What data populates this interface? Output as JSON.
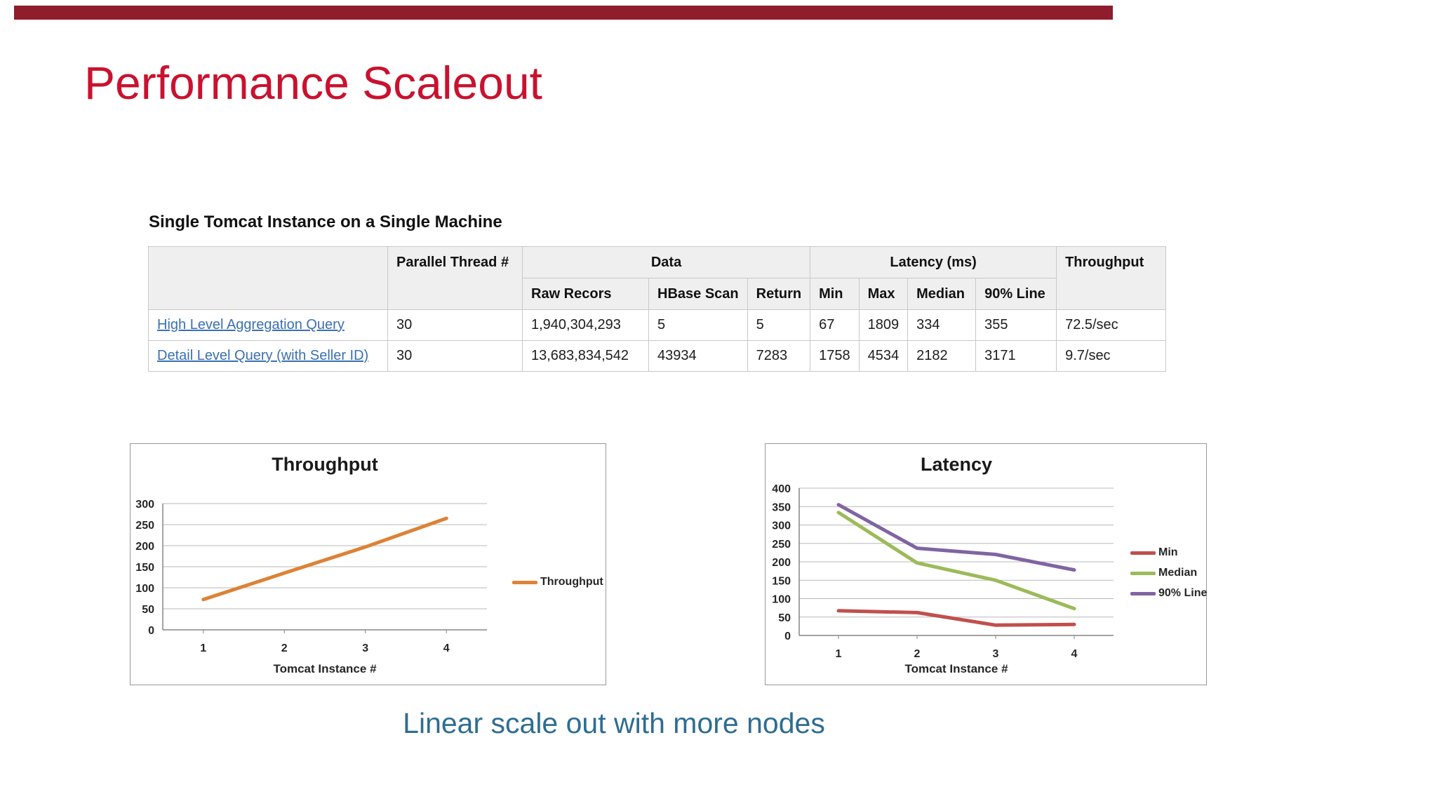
{
  "page": {
    "title": "Performance Scaleout",
    "title_color": "#c9122f",
    "top_bar_color": "#8f1d2c",
    "caption": "Linear scale out with more nodes",
    "caption_color": "#2e6d92"
  },
  "table": {
    "title": "Single Tomcat Instance on a Single Machine",
    "link_color": "#3a70b2",
    "group_headers": {
      "parallel": "Parallel Thread #",
      "data": "Data",
      "latency": "Latency (ms)",
      "throughput": "Throughput"
    },
    "sub_headers": {
      "raw": "Raw Recors",
      "hbase": "HBase Scan",
      "return": "Return",
      "min": "Min",
      "max": "Max",
      "median": "Median",
      "p90": "90% Line"
    },
    "rows": [
      {
        "name": "High Level Aggregation Query",
        "parallel": "30",
        "raw": "1,940,304,293",
        "hbase": "5",
        "return": "5",
        "min": "67",
        "max": "1809",
        "median": "334",
        "p90": "355",
        "throughput": "72.5/sec"
      },
      {
        "name": "Detail Level Query (with Seller ID)",
        "parallel": "30",
        "raw": "13,683,834,542",
        "hbase": "43934",
        "return": "7283",
        "min": "1758",
        "max": "4534",
        "median": "2182",
        "p90": "3171",
        "throughput": "9.7/sec"
      }
    ]
  },
  "chart_data": [
    {
      "type": "line",
      "title": "Throughput",
      "categories": [
        "1",
        "2",
        "3",
        "4"
      ],
      "xlabel": "Tomcat Instance #",
      "ylabel": "",
      "ylim": [
        0,
        300
      ],
      "ystep": 50,
      "grid": true,
      "legend_position": "right",
      "series": [
        {
          "name": "Throughput",
          "color": "#dd8237",
          "values": [
            72,
            135,
            197,
            265
          ]
        }
      ]
    },
    {
      "type": "line",
      "title": "Latency",
      "categories": [
        "1",
        "2",
        "3",
        "4"
      ],
      "xlabel": "Tomcat Instance #",
      "ylabel": "",
      "ylim": [
        0,
        400
      ],
      "ystep": 50,
      "grid": true,
      "legend_position": "right",
      "series": [
        {
          "name": "Min",
          "color": "#c0504d",
          "values": [
            67,
            62,
            28,
            30
          ]
        },
        {
          "name": "Median",
          "color": "#9bbb59",
          "values": [
            334,
            197,
            150,
            73
          ]
        },
        {
          "name": "90% Line",
          "color": "#8064a2",
          "values": [
            355,
            237,
            220,
            178
          ]
        }
      ]
    }
  ]
}
